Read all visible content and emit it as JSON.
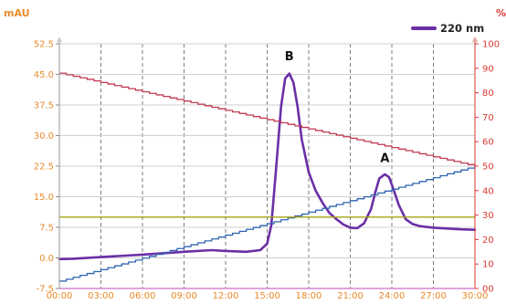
{
  "colors": {
    "axis_text_left": "#e98a2b",
    "axis_text_right": "#d83a32",
    "grid": "#7b7b7b",
    "uv_trace": "#6a2fa6",
    "gradient_descending": "#c03a52",
    "gradient_ascending": "#2e63b0",
    "threshold_line": "#a4a514",
    "baseline": "#d486d2"
  },
  "chart_data": {
    "type": "line",
    "title": "",
    "xlabel": "",
    "ylabel": "mAU",
    "ylabel_right": "%",
    "x_tick_labels": [
      "00:00",
      "03:00",
      "06:00",
      "09:00",
      "12:00",
      "15:00",
      "18:00",
      "21:00",
      "24:00",
      "27:00",
      "30:00"
    ],
    "x_tick_values": [
      0,
      3,
      6,
      9,
      12,
      15,
      18,
      21,
      24,
      27,
      30
    ],
    "xlim": [
      0,
      30
    ],
    "y_tick_labels": [
      "52.5",
      "45.0",
      "37.5",
      "30.0",
      "22.5",
      "15.0",
      "7.5",
      "0.0",
      "-7.5"
    ],
    "y_tick_values": [
      52.5,
      45,
      37.5,
      30,
      22.5,
      15,
      7.5,
      0,
      -7.5
    ],
    "ylim": [
      -7.5,
      52.5
    ],
    "y2_tick_labels": [
      "100",
      "90",
      "80",
      "70",
      "60",
      "50",
      "40",
      "30",
      "20",
      "10",
      "00"
    ],
    "y2_tick_values": [
      100,
      90,
      80,
      70,
      60,
      50,
      40,
      30,
      20,
      10,
      0
    ],
    "y2lim": [
      0,
      100
    ],
    "grid": true,
    "legend_position": "top-right",
    "series": [
      {
        "name": "220 nm",
        "axis": "left",
        "color": "#6a2fa6",
        "x": [
          0,
          1,
          3,
          6,
          9,
          11,
          12,
          13.5,
          14.5,
          15,
          15.3,
          15.6,
          16,
          16.3,
          16.6,
          16.9,
          17.2,
          17.5,
          18,
          18.5,
          19,
          19.5,
          20,
          20.5,
          21,
          21.5,
          22,
          22.5,
          22.8,
          23.1,
          23.5,
          23.8,
          24.1,
          24.5,
          25,
          25.5,
          26,
          27,
          28,
          29,
          30
        ],
        "y": [
          -0.3,
          -0.2,
          0.2,
          0.8,
          1.5,
          1.9,
          1.7,
          1.5,
          1.9,
          3.5,
          8,
          20,
          37,
          44,
          45.2,
          43,
          37,
          29,
          21,
          16.5,
          13.5,
          11,
          9.5,
          8.2,
          7.4,
          7.3,
          8.5,
          12,
          16,
          19.5,
          20.5,
          19.8,
          17,
          13,
          9.5,
          8.3,
          7.8,
          7.4,
          7.2,
          7.0,
          6.9
        ]
      },
      {
        "name": "",
        "axis": "right",
        "color": "#c03a52",
        "style": "step",
        "x": [
          0,
          30
        ],
        "y": [
          88,
          50
        ]
      },
      {
        "name": "",
        "axis": "right",
        "color": "#2e63b0",
        "style": "step",
        "x": [
          0,
          30
        ],
        "y": [
          3,
          50
        ]
      },
      {
        "name": "",
        "axis": "left",
        "color": "#a4a514",
        "x": [
          0,
          30
        ],
        "y": [
          10,
          10
        ]
      },
      {
        "name": "",
        "axis": "left",
        "color": "#d486d2",
        "x": [
          0,
          30
        ],
        "y": [
          -7.5,
          -7.5
        ]
      }
    ],
    "annotations": [
      {
        "text": "B",
        "x": 16.6,
        "y": 48.5
      },
      {
        "text": "A",
        "x": 23.5,
        "y": 23.5
      }
    ]
  }
}
